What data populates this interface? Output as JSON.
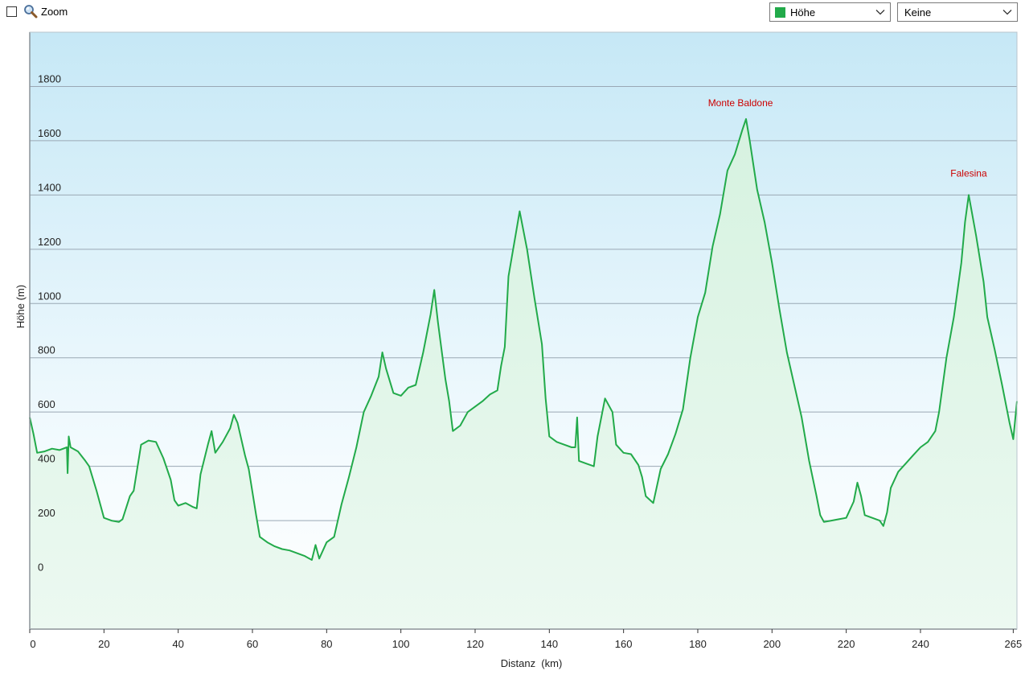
{
  "toolbar": {
    "zoom_label": "Zoom",
    "zoom_checked": false,
    "series_select": {
      "value": "Höhe",
      "color": "#22aa4a"
    },
    "extra_select": {
      "value": "Keine"
    }
  },
  "chart_data": {
    "type": "area",
    "xlabel": "Distanz  (km)",
    "ylabel": "Höhe (m)",
    "xlim": [
      0,
      266
    ],
    "ylim": [
      -200,
      2000
    ],
    "x_ticks": [
      0,
      20,
      40,
      60,
      80,
      100,
      120,
      140,
      160,
      180,
      200,
      220,
      240,
      265
    ],
    "y_ticks": [
      0,
      200,
      400,
      600,
      800,
      1000,
      1200,
      1400,
      1600,
      1800
    ],
    "grid": true,
    "line_color": "#22aa4a",
    "annotation_color": "#cc0000",
    "annotations": [
      {
        "label": "Monte Baldone",
        "x": 191.5,
        "y": 1680
      },
      {
        "label": "Falesina",
        "x": 253,
        "y": 1420
      }
    ],
    "series": [
      {
        "points": [
          [
            0,
            580
          ],
          [
            1,
            520
          ],
          [
            2,
            450
          ],
          [
            4,
            455
          ],
          [
            6,
            465
          ],
          [
            8,
            460
          ],
          [
            10,
            470
          ],
          [
            10.2,
            375
          ],
          [
            10.5,
            510
          ],
          [
            11,
            470
          ],
          [
            13,
            455
          ],
          [
            15,
            420
          ],
          [
            16,
            400
          ],
          [
            18,
            310
          ],
          [
            20,
            210
          ],
          [
            22,
            200
          ],
          [
            24,
            195
          ],
          [
            25,
            205
          ],
          [
            27,
            290
          ],
          [
            28,
            310
          ],
          [
            30,
            480
          ],
          [
            32,
            495
          ],
          [
            34,
            490
          ],
          [
            36,
            430
          ],
          [
            38,
            350
          ],
          [
            39,
            275
          ],
          [
            40,
            255
          ],
          [
            42,
            265
          ],
          [
            44,
            250
          ],
          [
            45,
            245
          ],
          [
            46,
            370
          ],
          [
            48,
            480
          ],
          [
            49,
            530
          ],
          [
            50,
            450
          ],
          [
            52,
            490
          ],
          [
            54,
            540
          ],
          [
            55,
            590
          ],
          [
            56,
            560
          ],
          [
            58,
            440
          ],
          [
            59,
            390
          ],
          [
            61,
            220
          ],
          [
            62,
            140
          ],
          [
            64,
            120
          ],
          [
            66,
            105
          ],
          [
            68,
            95
          ],
          [
            70,
            90
          ],
          [
            72,
            80
          ],
          [
            74,
            70
          ],
          [
            76,
            55
          ],
          [
            77,
            110
          ],
          [
            78,
            60
          ],
          [
            79,
            90
          ],
          [
            80,
            120
          ],
          [
            82,
            140
          ],
          [
            84,
            260
          ],
          [
            86,
            360
          ],
          [
            88,
            470
          ],
          [
            90,
            600
          ],
          [
            92,
            660
          ],
          [
            94,
            730
          ],
          [
            95,
            820
          ],
          [
            96,
            760
          ],
          [
            98,
            670
          ],
          [
            100,
            660
          ],
          [
            102,
            690
          ],
          [
            104,
            700
          ],
          [
            106,
            820
          ],
          [
            108,
            960
          ],
          [
            109,
            1050
          ],
          [
            110,
            930
          ],
          [
            112,
            720
          ],
          [
            113,
            640
          ],
          [
            114,
            530
          ],
          [
            116,
            550
          ],
          [
            118,
            600
          ],
          [
            120,
            620
          ],
          [
            122,
            640
          ],
          [
            124,
            665
          ],
          [
            126,
            680
          ],
          [
            127,
            770
          ],
          [
            128,
            840
          ],
          [
            129,
            1100
          ],
          [
            131,
            1260
          ],
          [
            132,
            1340
          ],
          [
            134,
            1200
          ],
          [
            136,
            1020
          ],
          [
            138,
            850
          ],
          [
            139,
            650
          ],
          [
            140,
            510
          ],
          [
            142,
            490
          ],
          [
            144,
            480
          ],
          [
            146,
            470
          ],
          [
            147,
            470
          ],
          [
            147.5,
            580
          ],
          [
            148,
            420
          ],
          [
            150,
            410
          ],
          [
            152,
            400
          ],
          [
            153,
            510
          ],
          [
            155,
            650
          ],
          [
            157,
            600
          ],
          [
            158,
            480
          ],
          [
            160,
            450
          ],
          [
            162,
            445
          ],
          [
            164,
            405
          ],
          [
            165,
            360
          ],
          [
            166,
            290
          ],
          [
            168,
            265
          ],
          [
            170,
            390
          ],
          [
            172,
            445
          ],
          [
            174,
            520
          ],
          [
            176,
            610
          ],
          [
            178,
            800
          ],
          [
            180,
            950
          ],
          [
            182,
            1040
          ],
          [
            184,
            1210
          ],
          [
            186,
            1330
          ],
          [
            188,
            1490
          ],
          [
            190,
            1550
          ],
          [
            192,
            1640
          ],
          [
            193,
            1680
          ],
          [
            194,
            1600
          ],
          [
            196,
            1420
          ],
          [
            198,
            1300
          ],
          [
            200,
            1150
          ],
          [
            202,
            980
          ],
          [
            204,
            820
          ],
          [
            206,
            700
          ],
          [
            208,
            580
          ],
          [
            210,
            420
          ],
          [
            212,
            290
          ],
          [
            213,
            220
          ],
          [
            214,
            195
          ],
          [
            216,
            200
          ],
          [
            218,
            205
          ],
          [
            220,
            210
          ],
          [
            222,
            270
          ],
          [
            223,
            340
          ],
          [
            224,
            290
          ],
          [
            225,
            220
          ],
          [
            227,
            210
          ],
          [
            229,
            200
          ],
          [
            230,
            180
          ],
          [
            231,
            230
          ],
          [
            232,
            320
          ],
          [
            234,
            380
          ],
          [
            236,
            410
          ],
          [
            238,
            440
          ],
          [
            240,
            470
          ],
          [
            242,
            490
          ],
          [
            244,
            530
          ],
          [
            245,
            600
          ],
          [
            247,
            800
          ],
          [
            249,
            950
          ],
          [
            251,
            1150
          ],
          [
            252,
            1300
          ],
          [
            253,
            1400
          ],
          [
            255,
            1250
          ],
          [
            257,
            1080
          ],
          [
            258,
            950
          ],
          [
            260,
            830
          ],
          [
            262,
            700
          ],
          [
            264,
            560
          ],
          [
            265,
            500
          ],
          [
            266,
            640
          ]
        ]
      }
    ]
  }
}
